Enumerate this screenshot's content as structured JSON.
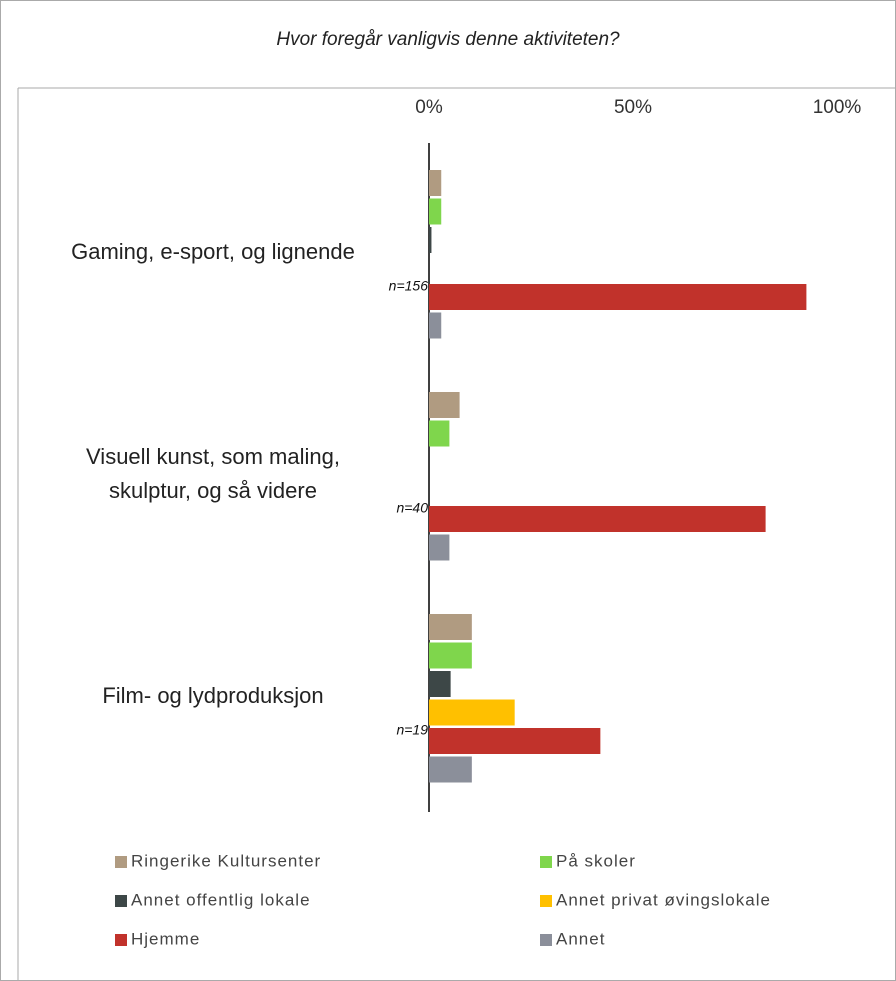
{
  "chart_data": {
    "type": "bar",
    "orientation": "horizontal",
    "title": "Hvor foregår vanligvis denne aktiviteten?",
    "categories": [
      "Gaming, e-sport, og lignende",
      "Visuell kunst, som maling,\nskulptur, og så videre",
      "Film- og lydproduksjon"
    ],
    "annotations": [
      "n=156",
      "n=40",
      "n=19"
    ],
    "series": [
      {
        "name": "Ringerike Kultursenter",
        "color": "#b09b81",
        "values": [
          3,
          7.5,
          10.5
        ]
      },
      {
        "name": "På skoler",
        "color": "#7fd64c",
        "values": [
          3,
          5,
          10.5
        ]
      },
      {
        "name": "Annet offentlig lokale",
        "color": "#3d4747",
        "values": [
          0.6,
          0,
          5.3
        ]
      },
      {
        "name": "Annet privat øvingslokale",
        "color": "#ffc000",
        "values": [
          0,
          0,
          21
        ]
      },
      {
        "name": "Hjemme",
        "color": "#c1322b",
        "values": [
          92.5,
          82.5,
          42
        ]
      },
      {
        "name": "Annet",
        "color": "#8b8f9a",
        "values": [
          3,
          5,
          10.5
        ]
      }
    ],
    "xlim": [
      0,
      100
    ],
    "xticks": [
      {
        "value": 0,
        "label": "0%"
      },
      {
        "value": 50,
        "label": "50%"
      },
      {
        "value": 100,
        "label": "100%"
      }
    ],
    "legend": "bottom"
  }
}
